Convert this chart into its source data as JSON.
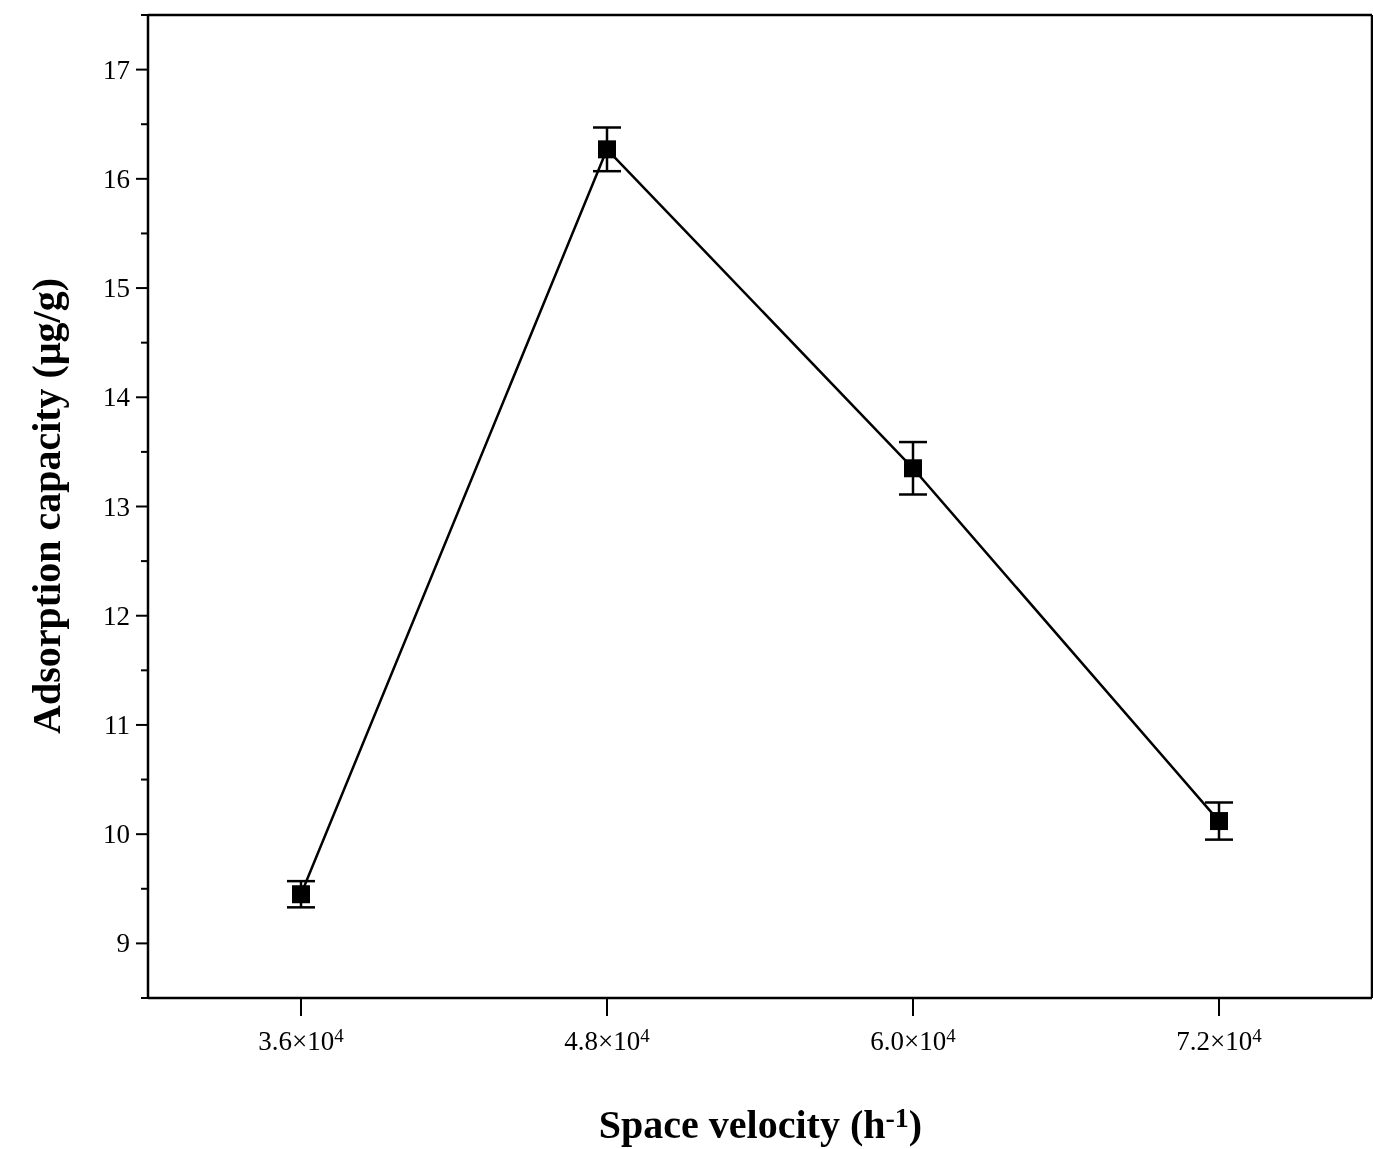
{
  "chart_data": {
    "type": "line",
    "xlabel": "Space velocity (h$^{-1}$)",
    "ylabel": "Adsorption capacity (μg/g)",
    "x": [
      36000,
      48000,
      60000,
      72000
    ],
    "series": [
      {
        "color": "#000000",
        "values": [
          9.45,
          16.27,
          13.35,
          10.12
        ],
        "errors": [
          0.12,
          0.2,
          0.24,
          0.17
        ]
      }
    ],
    "xlim": [
      30000,
      78000
    ],
    "xticks": [
      {
        "value": 36000,
        "label": "3.6×10$^{4}$"
      },
      {
        "value": 48000,
        "label": "4.8×10$^{4}$"
      },
      {
        "value": 60000,
        "label": "6.0×10$^{4}$"
      },
      {
        "value": 72000,
        "label": "7.2×10$^{4}$"
      }
    ],
    "ylim": [
      8.5,
      17.5
    ],
    "yticks": [
      {
        "value": 8.5,
        "label": null
      },
      9,
      {
        "value": 9.5,
        "label": null
      },
      10,
      {
        "value": 10.5,
        "label": null
      },
      11,
      {
        "value": 11.5,
        "label": null
      },
      12,
      {
        "value": 12.5,
        "label": null
      },
      13,
      {
        "value": 13.5,
        "label": null
      },
      14,
      {
        "value": 14.5,
        "label": null
      },
      15,
      {
        "value": 15.5,
        "label": null
      },
      16,
      {
        "value": 16.5,
        "label": null
      },
      17,
      {
        "value": 17.5,
        "label": null
      }
    ],
    "marker": "square",
    "line_style": "solid"
  }
}
